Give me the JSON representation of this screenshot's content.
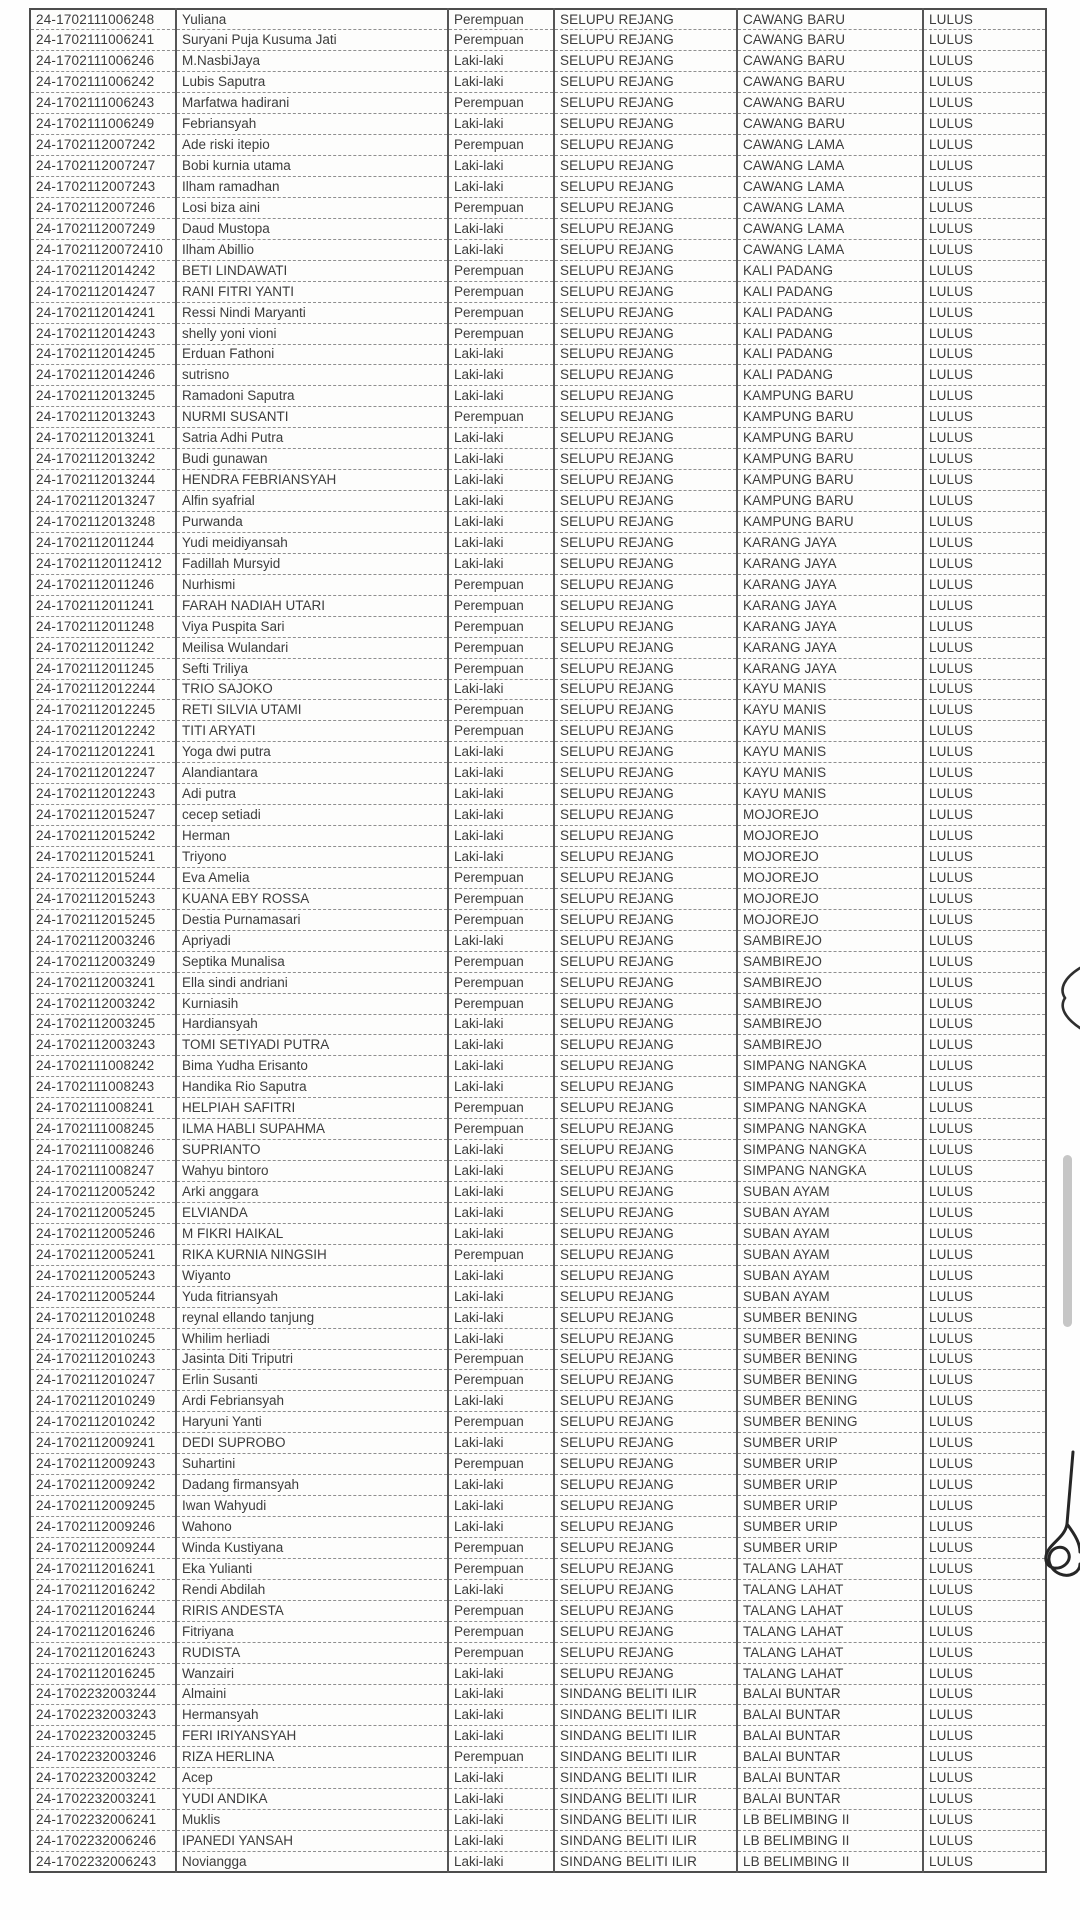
{
  "document": {
    "description": "scanned exam results list page",
    "paper_color": "#fdfdfc",
    "ink_color": "#3c3c3c",
    "pen_mark_color": "#2e2e2e",
    "scrollbar_color": "#c6c6c6"
  },
  "artifacts": {
    "scrollbar_thumb": "viewer-scrollbar-thumb",
    "pen_mark_1": "handwritten parenthesis stroke at right margin",
    "pen_mark_2": "handwritten scribble loop at right margin"
  },
  "table": {
    "columns": [
      "registration-id",
      "name",
      "gender",
      "district",
      "village",
      "status"
    ],
    "rows": [
      [
        "24-1702111006248",
        "Yuliana",
        "Perempuan",
        "SELUPU REJANG",
        "CAWANG BARU",
        "LULUS"
      ],
      [
        "24-1702111006241",
        "Suryani Puja Kusuma Jati",
        "Perempuan",
        "SELUPU REJANG",
        "CAWANG BARU",
        "LULUS"
      ],
      [
        "24-1702111006246",
        "M.NasbiJaya",
        "Laki-laki",
        "SELUPU REJANG",
        "CAWANG BARU",
        "LULUS"
      ],
      [
        "24-1702111006242",
        "Lubis Saputra",
        "Laki-laki",
        "SELUPU REJANG",
        "CAWANG BARU",
        "LULUS"
      ],
      [
        "24-1702111006243",
        "Marfatwa hadirani",
        "Perempuan",
        "SELUPU REJANG",
        "CAWANG BARU",
        "LULUS"
      ],
      [
        "24-1702111006249",
        "Febriansyah",
        "Laki-laki",
        "SELUPU REJANG",
        "CAWANG BARU",
        "LULUS"
      ],
      [
        "24-1702112007242",
        "Ade riski itepio",
        "Perempuan",
        "SELUPU REJANG",
        "CAWANG LAMA",
        "LULUS"
      ],
      [
        "24-1702112007247",
        "Bobi kurnia utama",
        "Laki-laki",
        "SELUPU REJANG",
        "CAWANG LAMA",
        "LULUS"
      ],
      [
        "24-1702112007243",
        "Ilham ramadhan",
        "Laki-laki",
        "SELUPU REJANG",
        "CAWANG LAMA",
        "LULUS"
      ],
      [
        "24-1702112007246",
        "Losi biza aini",
        "Perempuan",
        "SELUPU REJANG",
        "CAWANG LAMA",
        "LULUS"
      ],
      [
        "24-1702112007249",
        "Daud Mustopa",
        "Laki-laki",
        "SELUPU REJANG",
        "CAWANG LAMA",
        "LULUS"
      ],
      [
        "24-17021120072410",
        "Ilham Abillio",
        "Laki-laki",
        "SELUPU REJANG",
        "CAWANG LAMA",
        "LULUS"
      ],
      [
        "24-1702112014242",
        "BETI LINDAWATI",
        "Perempuan",
        "SELUPU REJANG",
        "KALI PADANG",
        "LULUS"
      ],
      [
        "24-1702112014247",
        "RANI FITRI YANTI",
        "Perempuan",
        "SELUPU REJANG",
        "KALI PADANG",
        "LULUS"
      ],
      [
        "24-1702112014241",
        "Ressi Nindi Maryanti",
        "Perempuan",
        "SELUPU REJANG",
        "KALI PADANG",
        "LULUS"
      ],
      [
        "24-1702112014243",
        "shelly yoni vioni",
        "Perempuan",
        "SELUPU REJANG",
        "KALI PADANG",
        "LULUS"
      ],
      [
        "24-1702112014245",
        "Erduan Fathoni",
        "Laki-laki",
        "SELUPU REJANG",
        "KALI PADANG",
        "LULUS"
      ],
      [
        "24-1702112014246",
        "sutrisno",
        "Laki-laki",
        "SELUPU REJANG",
        "KALI PADANG",
        "LULUS"
      ],
      [
        "24-1702112013245",
        "Ramadoni Saputra",
        "Laki-laki",
        "SELUPU REJANG",
        "KAMPUNG BARU",
        "LULUS"
      ],
      [
        "24-1702112013243",
        "NURMI SUSANTI",
        "Perempuan",
        "SELUPU REJANG",
        "KAMPUNG BARU",
        "LULUS"
      ],
      [
        "24-1702112013241",
        "Satria Adhi Putra",
        "Laki-laki",
        "SELUPU REJANG",
        "KAMPUNG BARU",
        "LULUS"
      ],
      [
        "24-1702112013242",
        "Budi gunawan",
        "Laki-laki",
        "SELUPU REJANG",
        "KAMPUNG BARU",
        "LULUS"
      ],
      [
        "24-1702112013244",
        "HENDRA FEBRIANSYAH",
        "Laki-laki",
        "SELUPU REJANG",
        "KAMPUNG BARU",
        "LULUS"
      ],
      [
        "24-1702112013247",
        "Alfin syafrial",
        "Laki-laki",
        "SELUPU REJANG",
        "KAMPUNG BARU",
        "LULUS"
      ],
      [
        "24-1702112013248",
        "Purwanda",
        "Laki-laki",
        "SELUPU REJANG",
        "KAMPUNG BARU",
        "LULUS"
      ],
      [
        "24-1702112011244",
        "Yudi meidiyansah",
        "Laki-laki",
        "SELUPU REJANG",
        "KARANG JAYA",
        "LULUS"
      ],
      [
        "24-17021120112412",
        "Fadillah Mursyid",
        "Laki-laki",
        "SELUPU REJANG",
        "KARANG JAYA",
        "LULUS"
      ],
      [
        "24-1702112011246",
        "Nurhismi",
        "Perempuan",
        "SELUPU REJANG",
        "KARANG JAYA",
        "LULUS"
      ],
      [
        "24-1702112011241",
        "FARAH NADIAH UTARI",
        "Perempuan",
        "SELUPU REJANG",
        "KARANG JAYA",
        "LULUS"
      ],
      [
        "24-1702112011248",
        "Viya Puspita Sari",
        "Perempuan",
        "SELUPU REJANG",
        "KARANG JAYA",
        "LULUS"
      ],
      [
        "24-1702112011242",
        "Meilisa Wulandari",
        "Perempuan",
        "SELUPU REJANG",
        "KARANG JAYA",
        "LULUS"
      ],
      [
        "24-1702112011245",
        "Sefti Triliya",
        "Perempuan",
        "SELUPU REJANG",
        "KARANG JAYA",
        "LULUS"
      ],
      [
        "24-1702112012244",
        "TRIO SAJOKO",
        "Laki-laki",
        "SELUPU REJANG",
        "KAYU MANIS",
        "LULUS"
      ],
      [
        "24-1702112012245",
        "RETI SILVIA UTAMI",
        "Perempuan",
        "SELUPU REJANG",
        "KAYU MANIS",
        "LULUS"
      ],
      [
        "24-1702112012242",
        "TITI ARYATI",
        "Perempuan",
        "SELUPU REJANG",
        "KAYU MANIS",
        "LULUS"
      ],
      [
        "24-1702112012241",
        "Yoga dwi putra",
        "Laki-laki",
        "SELUPU REJANG",
        "KAYU MANIS",
        "LULUS"
      ],
      [
        "24-1702112012247",
        "Alandiantara",
        "Laki-laki",
        "SELUPU REJANG",
        "KAYU MANIS",
        "LULUS"
      ],
      [
        "24-1702112012243",
        "Adi putra",
        "Laki-laki",
        "SELUPU REJANG",
        "KAYU MANIS",
        "LULUS"
      ],
      [
        "24-1702112015247",
        "cecep setiadi",
        "Laki-laki",
        "SELUPU REJANG",
        "MOJOREJO",
        "LULUS"
      ],
      [
        "24-1702112015242",
        "Herman",
        "Laki-laki",
        "SELUPU REJANG",
        "MOJOREJO",
        "LULUS"
      ],
      [
        "24-1702112015241",
        "Triyono",
        "Laki-laki",
        "SELUPU REJANG",
        "MOJOREJO",
        "LULUS"
      ],
      [
        "24-1702112015244",
        "Eva Amelia",
        "Perempuan",
        "SELUPU REJANG",
        "MOJOREJO",
        "LULUS"
      ],
      [
        "24-1702112015243",
        "KUANA EBY ROSSA",
        "Perempuan",
        "SELUPU REJANG",
        "MOJOREJO",
        "LULUS"
      ],
      [
        "24-1702112015245",
        "Destia Purnamasari",
        "Perempuan",
        "SELUPU REJANG",
        "MOJOREJO",
        "LULUS"
      ],
      [
        "24-1702112003246",
        "Apriyadi",
        "Laki-laki",
        "SELUPU REJANG",
        "SAMBIREJO",
        "LULUS"
      ],
      [
        "24-1702112003249",
        "Septika Munalisa",
        "Perempuan",
        "SELUPU REJANG",
        "SAMBIREJO",
        "LULUS"
      ],
      [
        "24-1702112003241",
        "Ella sindi andriani",
        "Perempuan",
        "SELUPU REJANG",
        "SAMBIREJO",
        "LULUS"
      ],
      [
        "24-1702112003242",
        "Kurniasih",
        "Perempuan",
        "SELUPU REJANG",
        "SAMBIREJO",
        "LULUS"
      ],
      [
        "24-1702112003245",
        "Hardiansyah",
        "Laki-laki",
        "SELUPU REJANG",
        "SAMBIREJO",
        "LULUS"
      ],
      [
        "24-1702112003243",
        "TOMI SETIYADI PUTRA",
        "Laki-laki",
        "SELUPU REJANG",
        "SAMBIREJO",
        "LULUS"
      ],
      [
        "24-1702111008242",
        "Bima Yudha Erisanto",
        "Laki-laki",
        "SELUPU REJANG",
        "SIMPANG NANGKA",
        "LULUS"
      ],
      [
        "24-1702111008243",
        "Handika Rio Saputra",
        "Laki-laki",
        "SELUPU REJANG",
        "SIMPANG NANGKA",
        "LULUS"
      ],
      [
        "24-1702111008241",
        "HELPIAH SAFITRI",
        "Perempuan",
        "SELUPU REJANG",
        "SIMPANG NANGKA",
        "LULUS"
      ],
      [
        "24-1702111008245",
        "ILMA HABLI SUPAHMA",
        "Perempuan",
        "SELUPU REJANG",
        "SIMPANG NANGKA",
        "LULUS"
      ],
      [
        "24-1702111008246",
        "SUPRIANTO",
        "Laki-laki",
        "SELUPU REJANG",
        "SIMPANG NANGKA",
        "LULUS"
      ],
      [
        "24-1702111008247",
        "Wahyu bintoro",
        "Laki-laki",
        "SELUPU REJANG",
        "SIMPANG NANGKA",
        "LULUS"
      ],
      [
        "24-1702112005242",
        "Arki anggara",
        "Laki-laki",
        "SELUPU REJANG",
        "SUBAN AYAM",
        "LULUS"
      ],
      [
        "24-1702112005245",
        "ELVIANDA",
        "Laki-laki",
        "SELUPU REJANG",
        "SUBAN AYAM",
        "LULUS"
      ],
      [
        "24-1702112005246",
        "M FIKRI HAIKAL",
        "Laki-laki",
        "SELUPU REJANG",
        "SUBAN AYAM",
        "LULUS"
      ],
      [
        "24-1702112005241",
        "RIKA KURNIA NINGSIH",
        "Perempuan",
        "SELUPU REJANG",
        "SUBAN AYAM",
        "LULUS"
      ],
      [
        "24-1702112005243",
        "Wiyanto",
        "Laki-laki",
        "SELUPU REJANG",
        "SUBAN AYAM",
        "LULUS"
      ],
      [
        "24-1702112005244",
        "Yuda fitriansyah",
        "Laki-laki",
        "SELUPU REJANG",
        "SUBAN AYAM",
        "LULUS"
      ],
      [
        "24-1702112010248",
        "reynal ellando tanjung",
        "Laki-laki",
        "SELUPU REJANG",
        "SUMBER BENING",
        "LULUS"
      ],
      [
        "24-1702112010245",
        "Whilim herliadi",
        "Laki-laki",
        "SELUPU REJANG",
        "SUMBER BENING",
        "LULUS"
      ],
      [
        "24-1702112010243",
        "Jasinta Diti Triputri",
        "Perempuan",
        "SELUPU REJANG",
        "SUMBER BENING",
        "LULUS"
      ],
      [
        "24-1702112010247",
        "Erlin Susanti",
        "Perempuan",
        "SELUPU REJANG",
        "SUMBER BENING",
        "LULUS"
      ],
      [
        "24-1702112010249",
        "Ardi Febriansyah",
        "Laki-laki",
        "SELUPU REJANG",
        "SUMBER BENING",
        "LULUS"
      ],
      [
        "24-1702112010242",
        "Haryuni Yanti",
        "Perempuan",
        "SELUPU REJANG",
        "SUMBER BENING",
        "LULUS"
      ],
      [
        "24-1702112009241",
        "DEDI SUPROBO",
        "Laki-laki",
        "SELUPU REJANG",
        "SUMBER URIP",
        "LULUS"
      ],
      [
        "24-1702112009243",
        "Suhartini",
        "Perempuan",
        "SELUPU REJANG",
        "SUMBER URIP",
        "LULUS"
      ],
      [
        "24-1702112009242",
        "Dadang firmansyah",
        "Laki-laki",
        "SELUPU REJANG",
        "SUMBER URIP",
        "LULUS"
      ],
      [
        "24-1702112009245",
        "Iwan Wahyudi",
        "Laki-laki",
        "SELUPU REJANG",
        "SUMBER URIP",
        "LULUS"
      ],
      [
        "24-1702112009246",
        "Wahono",
        "Laki-laki",
        "SELUPU REJANG",
        "SUMBER URIP",
        "LULUS"
      ],
      [
        "24-1702112009244",
        "Winda Kustiyana",
        "Perempuan",
        "SELUPU REJANG",
        "SUMBER URIP",
        "LULUS"
      ],
      [
        "24-1702112016241",
        "Eka Yulianti",
        "Perempuan",
        "SELUPU REJANG",
        "TALANG LAHAT",
        "LULUS"
      ],
      [
        "24-1702112016242",
        "Rendi Abdilah",
        "Laki-laki",
        "SELUPU REJANG",
        "TALANG LAHAT",
        "LULUS"
      ],
      [
        "24-1702112016244",
        "RIRIS ANDESTA",
        "Perempuan",
        "SELUPU REJANG",
        "TALANG LAHAT",
        "LULUS"
      ],
      [
        "24-1702112016246",
        "Fitriyana",
        "Perempuan",
        "SELUPU REJANG",
        "TALANG LAHAT",
        "LULUS"
      ],
      [
        "24-1702112016243",
        "RUDISTA",
        "Perempuan",
        "SELUPU REJANG",
        "TALANG LAHAT",
        "LULUS"
      ],
      [
        "24-1702112016245",
        "Wanzairi",
        "Laki-laki",
        "SELUPU REJANG",
        "TALANG LAHAT",
        "LULUS"
      ],
      [
        "24-1702232003244",
        "Almaini",
        "Laki-laki",
        "SINDANG BELITI ILIR",
        "BALAI BUNTAR",
        "LULUS"
      ],
      [
        "24-1702232003243",
        "Hermansyah",
        "Laki-laki",
        "SINDANG BELITI ILIR",
        "BALAI BUNTAR",
        "LULUS"
      ],
      [
        "24-1702232003245",
        "FERI IRIYANSYAH",
        "Laki-laki",
        "SINDANG BELITI ILIR",
        "BALAI BUNTAR",
        "LULUS"
      ],
      [
        "24-1702232003246",
        "RIZA HERLINA",
        "Perempuan",
        "SINDANG BELITI ILIR",
        "BALAI BUNTAR",
        "LULUS"
      ],
      [
        "24-1702232003242",
        "Acep",
        "Laki-laki",
        "SINDANG BELITI ILIR",
        "BALAI BUNTAR",
        "LULUS"
      ],
      [
        "24-1702232003241",
        "YUDI ANDIKA",
        "Laki-laki",
        "SINDANG BELITI ILIR",
        "BALAI BUNTAR",
        "LULUS"
      ],
      [
        "24-1702232006241",
        "Muklis",
        "Laki-laki",
        "SINDANG BELITI ILIR",
        "LB BELIMBING II",
        "LULUS"
      ],
      [
        "24-1702232006246",
        "IPANEDI YANSAH",
        "Laki-laki",
        "SINDANG BELITI ILIR",
        "LB BELIMBING II",
        "LULUS"
      ],
      [
        "24-1702232006243",
        "Noviangga",
        "Laki-laki",
        "SINDANG BELITI ILIR",
        "LB BELIMBING II",
        "LULUS"
      ]
    ]
  }
}
